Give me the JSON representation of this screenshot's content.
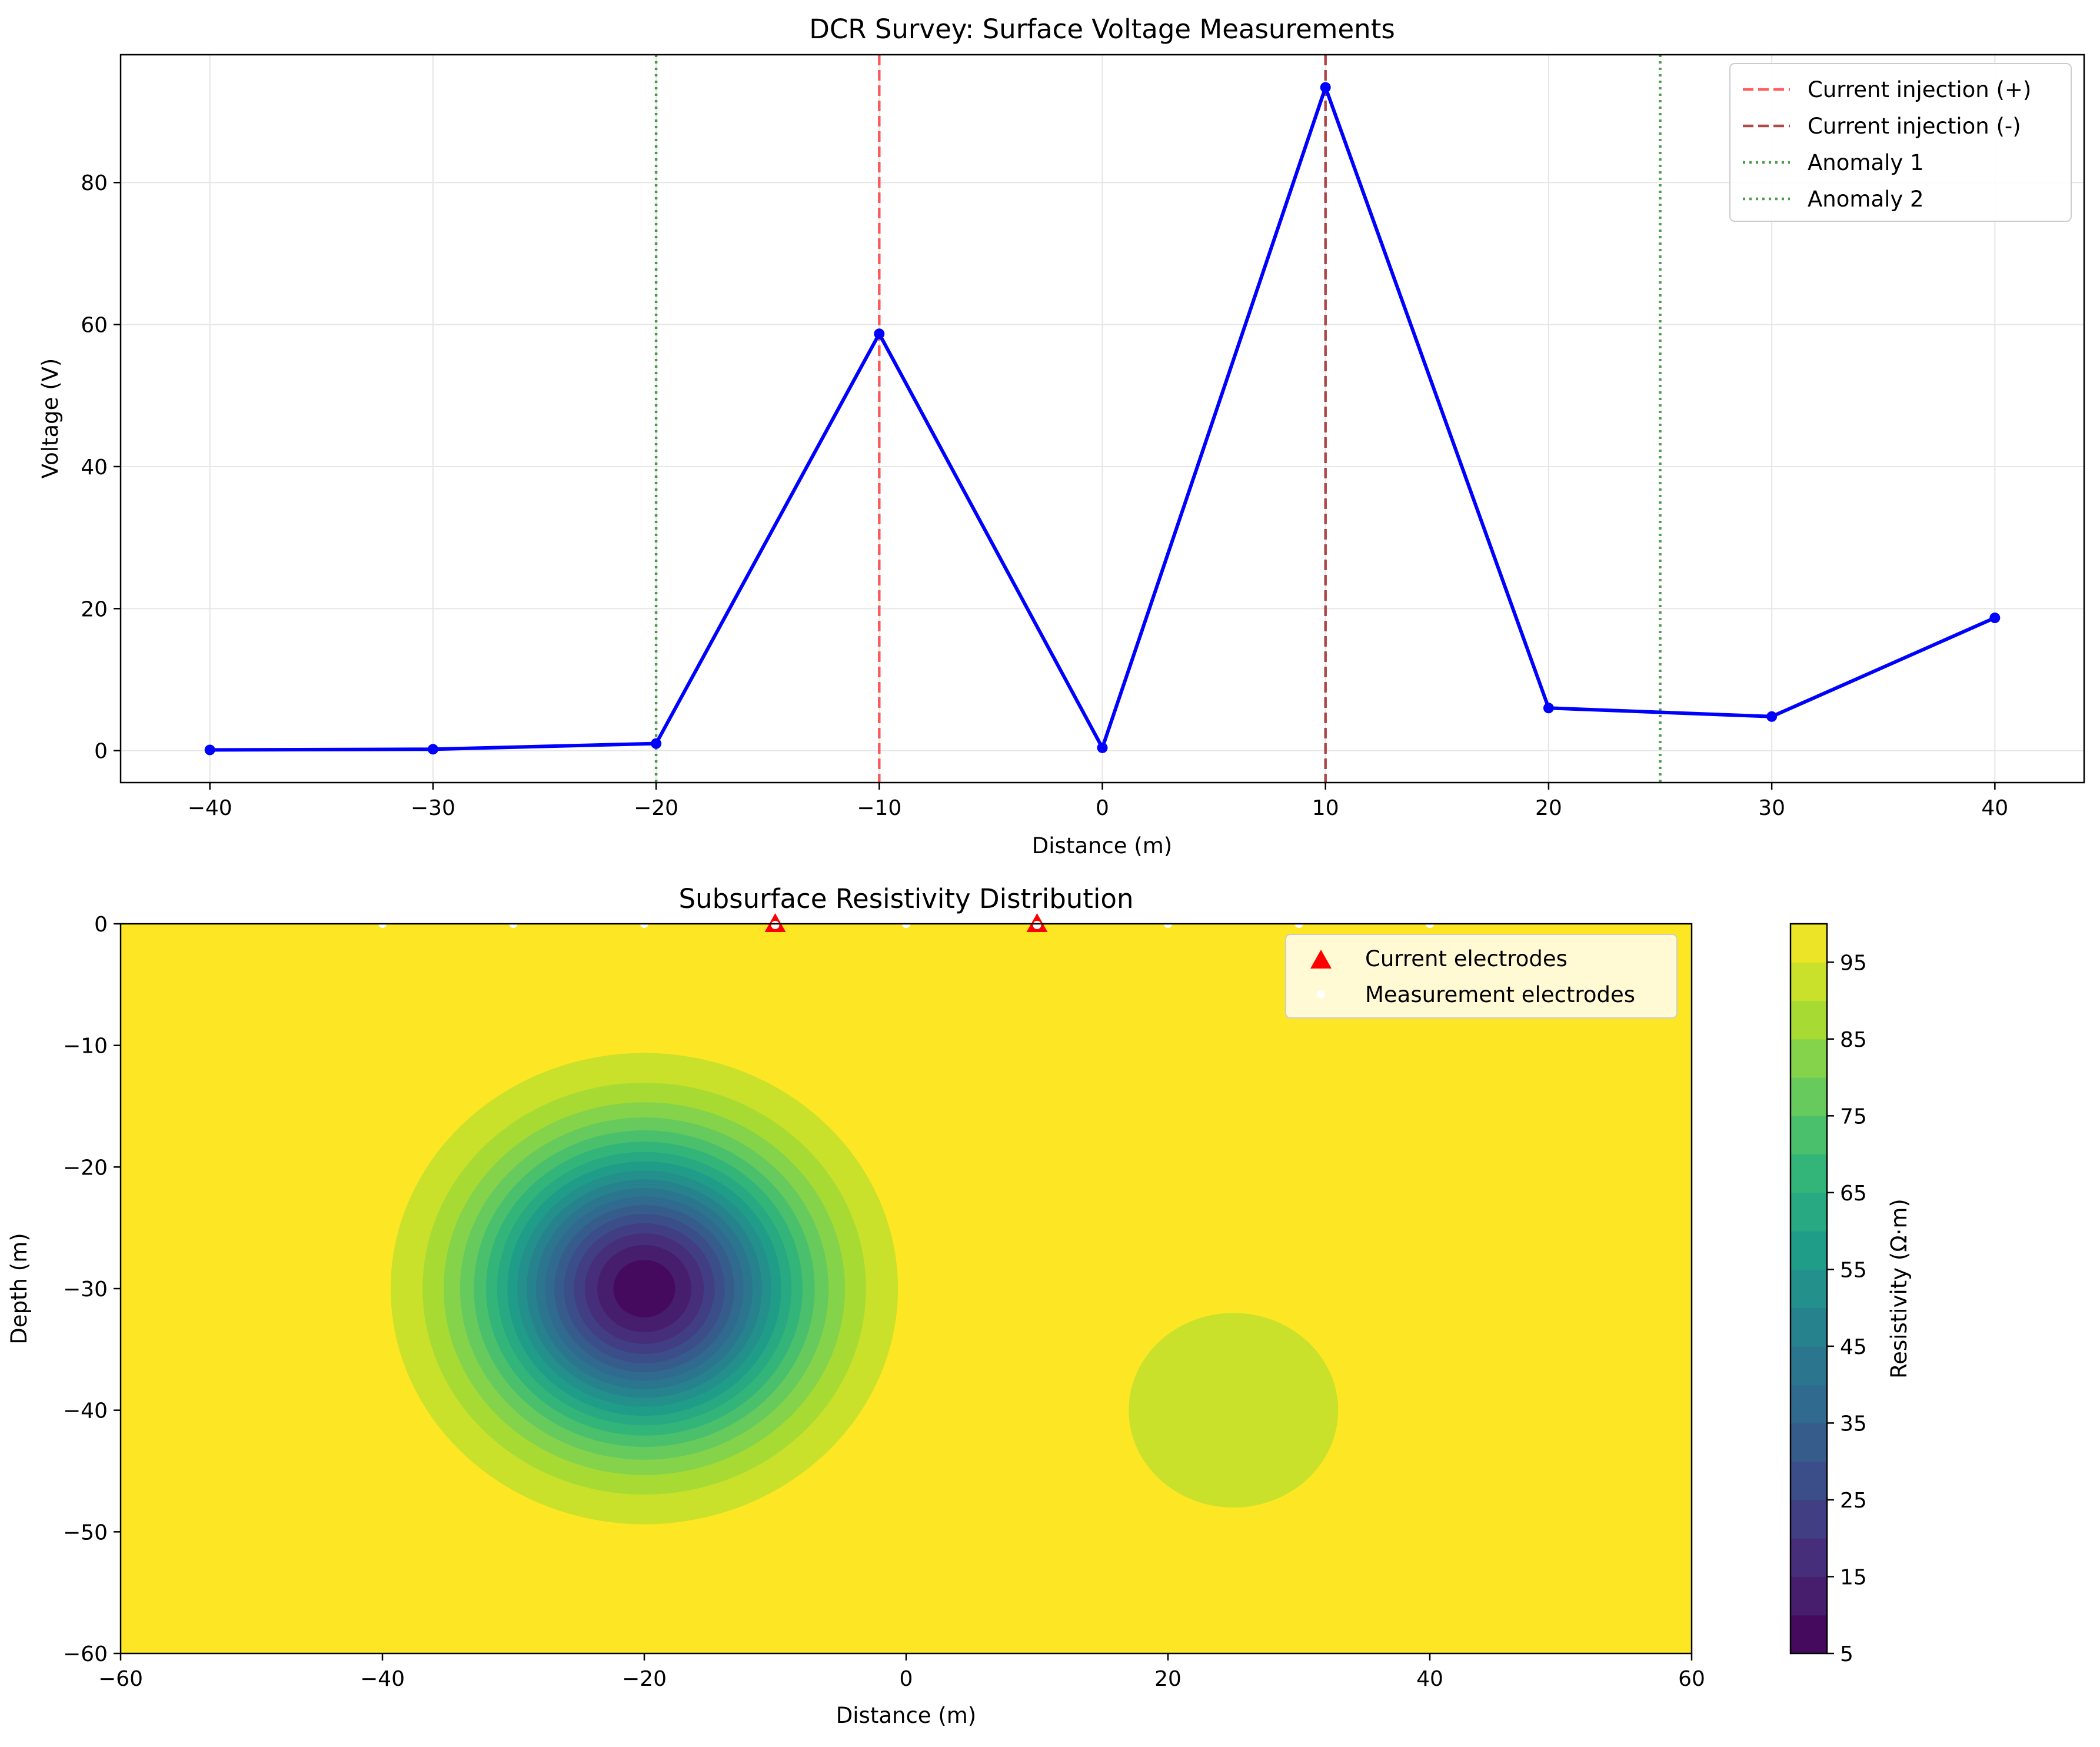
{
  "chart_data": [
    {
      "type": "line",
      "title": "DCR Survey: Surface Voltage Measurements",
      "xlabel": "Distance (m)",
      "ylabel": "Voltage (V)",
      "xlim": [
        -44,
        44
      ],
      "ylim": [
        -4.5,
        98
      ],
      "xticks": [
        -40,
        -30,
        -20,
        -10,
        0,
        10,
        20,
        30,
        40
      ],
      "yticks": [
        0,
        20,
        40,
        60,
        80
      ],
      "grid": true,
      "legend_position": "top-right",
      "series": [
        {
          "name": "",
          "color": "#0000ff",
          "x": [
            -40,
            -30,
            -20,
            -10,
            0,
            10,
            20,
            30,
            40
          ],
          "y": [
            0.1,
            0.2,
            1.0,
            58.7,
            0.4,
            93.4,
            6.0,
            4.8,
            18.7
          ]
        }
      ],
      "vlines": [
        {
          "name": "Current injection (+)",
          "x": -10,
          "color": "#ff4040",
          "style": "dashed"
        },
        {
          "name": "Current injection (-)",
          "x": 10,
          "color": "#a52a2a",
          "style": "dashed"
        },
        {
          "name": "Anomaly 1",
          "x": -20,
          "color": "#2e8b2e",
          "style": "dotted"
        },
        {
          "name": "Anomaly 2",
          "x": 25,
          "color": "#2e8b2e",
          "style": "dotted"
        }
      ]
    },
    {
      "type": "heatmap",
      "title": "Subsurface Resistivity Distribution",
      "xlabel": "Distance (m)",
      "ylabel": "Depth (m)",
      "xlim": [
        -60,
        60
      ],
      "ylim": [
        -60,
        0
      ],
      "xticks": [
        -60,
        -40,
        -20,
        0,
        20,
        40,
        60
      ],
      "yticks": [
        0,
        -10,
        -20,
        -30,
        -40,
        -50,
        -60
      ],
      "background_resistivity": 100,
      "anomalies": [
        {
          "center_x": -20,
          "center_y": -30,
          "min_resistivity": 6,
          "sigma": 8
        },
        {
          "center_x": 25,
          "center_y": -40,
          "radius": 8,
          "resistivity": 92
        }
      ],
      "colorbar": {
        "label": "Resistivity (Ω·m)",
        "levels": [
          5,
          10,
          15,
          20,
          25,
          30,
          35,
          40,
          45,
          50,
          55,
          60,
          65,
          70,
          75,
          80,
          85,
          90,
          95,
          100
        ],
        "ticks": [
          5,
          15,
          25,
          35,
          45,
          55,
          65,
          75,
          85,
          95
        ],
        "colormap": "viridis"
      },
      "current_electrodes": {
        "label": "Current electrodes",
        "x": [
          -10,
          10
        ],
        "color": "#ff0000",
        "marker": "triangle"
      },
      "measurement_electrodes": {
        "label": "Measurement electrodes",
        "x": [
          -40,
          -30,
          -20,
          0,
          20,
          30,
          40
        ],
        "color": "#ffffff",
        "marker": "circle"
      },
      "legend_position": "top-right"
    }
  ]
}
